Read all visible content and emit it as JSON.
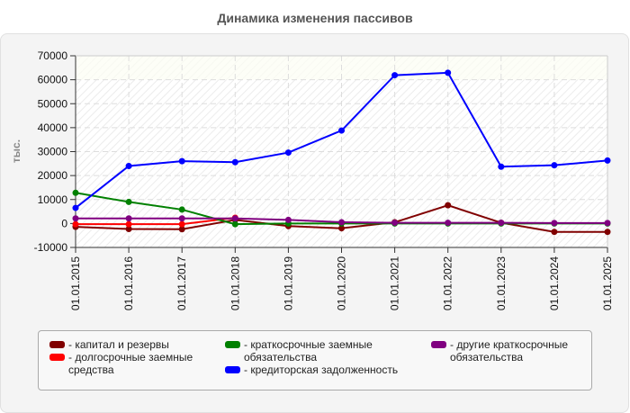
{
  "chart_data": {
    "type": "line",
    "title": "Динамика изменения пассивов",
    "xlabel": "",
    "ylabel": "тыс.",
    "ylim": [
      -10000,
      70000
    ],
    "yticks": [
      70000,
      60000,
      50000,
      40000,
      30000,
      20000,
      10000,
      0,
      -10000
    ],
    "grid": true,
    "legend_position": "bottom",
    "categories": [
      "01.01.2015",
      "01.01.2016",
      "01.01.2017",
      "01.01.2018",
      "01.01.2019",
      "01.01.2020",
      "01.01.2021",
      "01.01.2022",
      "01.01.2023",
      "01.01.2024",
      "01.01.2025"
    ],
    "series": [
      {
        "name": "капитал и резервы",
        "color": "#800000",
        "values": [
          -1400,
          -2300,
          -2400,
          1500,
          -1100,
          -2000,
          500,
          7600,
          300,
          -3500,
          -3500
        ]
      },
      {
        "name": "долгосрочные заемные средства",
        "color": "#ff0000",
        "values": [
          -300,
          -300,
          -300,
          2400,
          null,
          null,
          null,
          null,
          null,
          null,
          null
        ]
      },
      {
        "name": "краткосрочные заемные обязательства",
        "color": "#008000",
        "values": [
          12800,
          9000,
          5800,
          -300,
          0,
          0,
          0,
          0,
          0,
          0,
          0
        ]
      },
      {
        "name": "кредиторская задолженность",
        "color": "#0000ff",
        "values": [
          6500,
          24000,
          26000,
          25600,
          29600,
          38800,
          61900,
          62900,
          23700,
          24300,
          26300
        ]
      },
      {
        "name": "другие краткосрочные обязательства",
        "color": "#800080",
        "values": [
          2100,
          2100,
          2100,
          2100,
          1500,
          500,
          300,
          300,
          300,
          200,
          200
        ]
      }
    ]
  },
  "legend": {
    "items": [
      {
        "label_1": "- капитал и резервы",
        "label_2": ""
      },
      {
        "label_1": "- долгосрочные заемные",
        "label_2": "средства"
      },
      {
        "label_1": "- краткосрочные заемные",
        "label_2": "обязательства"
      },
      {
        "label_1": "- кредиторская задолженность",
        "label_2": ""
      },
      {
        "label_1": "- другие краткосрочные",
        "label_2": "обязательства"
      }
    ]
  }
}
